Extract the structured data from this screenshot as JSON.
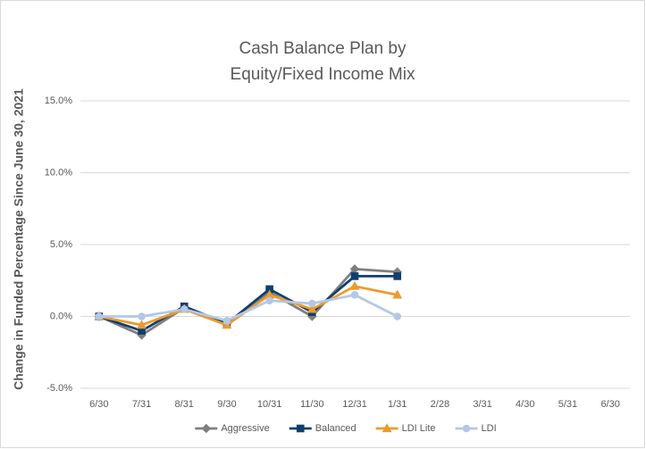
{
  "chart_data": {
    "type": "line",
    "title": [
      "Cash Balance Plan by",
      "Equity/Fixed Income Mix"
    ],
    "y_label": "Change in Funded Percentage Since June 30, 2021",
    "categories": [
      "6/30",
      "7/31",
      "8/31",
      "9/30",
      "10/31",
      "11/30",
      "12/31",
      "1/31",
      "2/28",
      "3/31",
      "4/30",
      "5/31",
      "6/30"
    ],
    "series": [
      {
        "name": "Aggressive",
        "color": "#7f7f7f",
        "marker": "diamond",
        "values": [
          0,
          -1.3,
          0.6,
          -0.5,
          1.7,
          0.0,
          3.3,
          3.1,
          null,
          null,
          null,
          null,
          null
        ]
      },
      {
        "name": "Balanced",
        "color": "#0e3f6e",
        "marker": "square",
        "values": [
          0,
          -1.0,
          0.7,
          -0.5,
          1.9,
          0.3,
          2.8,
          2.8,
          null,
          null,
          null,
          null,
          null
        ]
      },
      {
        "name": "LDI Lite",
        "color": "#eb9b2d",
        "marker": "triangle",
        "values": [
          0,
          -0.6,
          0.5,
          -0.6,
          1.5,
          0.5,
          2.1,
          1.5,
          null,
          null,
          null,
          null,
          null
        ]
      },
      {
        "name": "LDI",
        "color": "#b4c7e7",
        "marker": "circle",
        "values": [
          0,
          0.0,
          0.5,
          -0.3,
          1.1,
          0.9,
          1.5,
          0.0,
          null,
          null,
          null,
          null,
          null
        ]
      }
    ],
    "ylim": [
      -5,
      15
    ],
    "yticks": [
      {
        "value": -5,
        "label": "-5.0%"
      },
      {
        "value": 0,
        "label": "0.0%"
      },
      {
        "value": 5,
        "label": "5.0%"
      },
      {
        "value": 10,
        "label": "10.0%"
      },
      {
        "value": 15,
        "label": "15.0%"
      }
    ],
    "grid": true,
    "legend": "bottom"
  }
}
